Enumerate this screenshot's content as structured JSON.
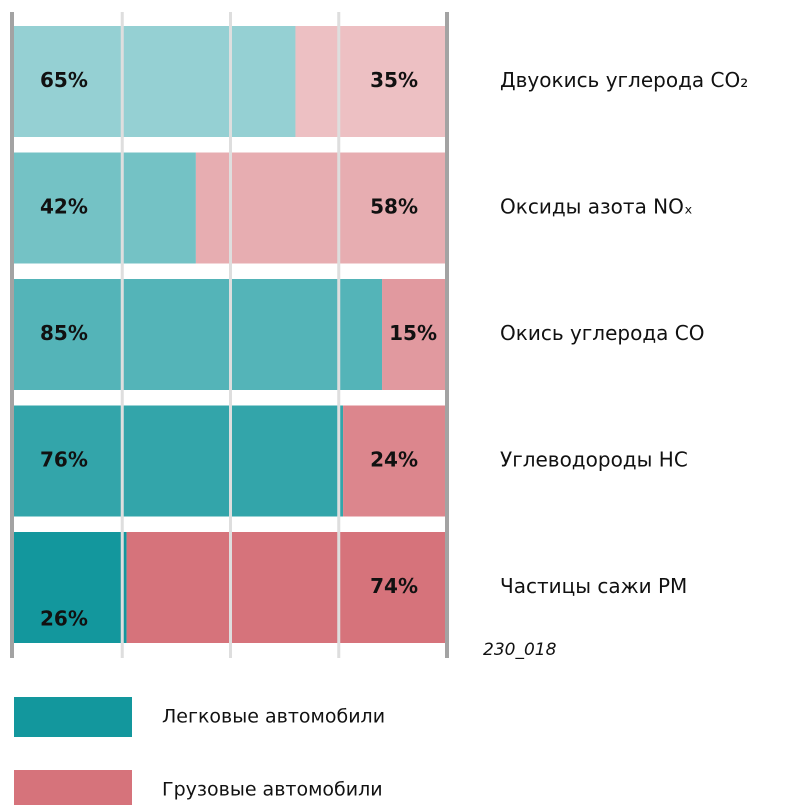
{
  "chart_data": {
    "type": "stacked-bar-horizontal",
    "categories": [
      "Двуокись углерода CO₂",
      "Оксиды азота NOₓ",
      "Окись углерода CO",
      "Углеводороды HC",
      "Частицы сажи PM"
    ],
    "series": [
      {
        "name": "Легковые автомобили",
        "color": "#13979d",
        "values": [
          65,
          42,
          85,
          76,
          26
        ],
        "value_labels": [
          "65%",
          "42%",
          "85%",
          "76%",
          "26%"
        ]
      },
      {
        "name": "Грузовые автомобили",
        "color": "#d6737b",
        "values": [
          35,
          58,
          15,
          24,
          74
        ],
        "value_labels": [
          "35%",
          "58%",
          "15%",
          "24%",
          "74%"
        ]
      }
    ],
    "xlim": [
      0,
      100
    ],
    "xticks": [
      0,
      25,
      50,
      75,
      100
    ],
    "grid": true,
    "annotation": "230_018"
  }
}
